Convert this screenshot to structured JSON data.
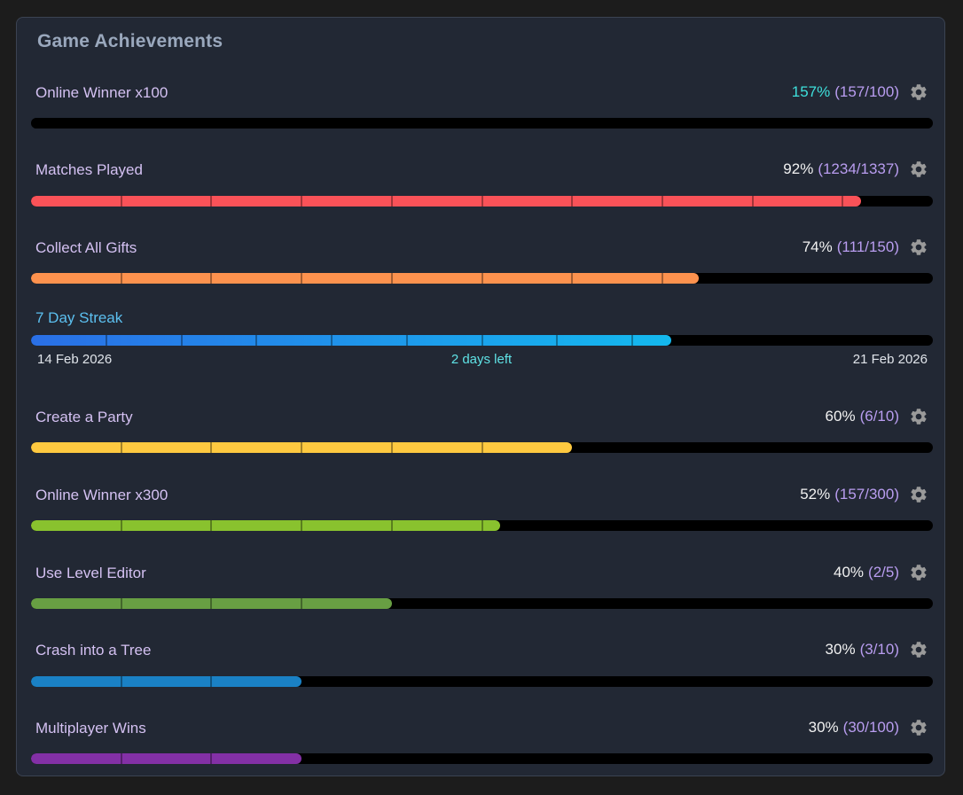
{
  "panel": {
    "title": "Game Achievements"
  },
  "achievements": [
    {
      "name": "Online Winner x100",
      "percent": "157%",
      "progress": "(157/100)",
      "fraction": 1.57,
      "segments": 1,
      "color": "#000000",
      "overflow": true
    },
    {
      "name": "Matches Played",
      "percent": "92%",
      "progress": "(1234/1337)",
      "fraction": 0.92,
      "segments": 10,
      "color": "#fa5258"
    },
    {
      "name": "Collect All Gifts",
      "percent": "74%",
      "progress": "(111/150)",
      "fraction": 0.74,
      "segments": 10,
      "color": "#fd924e"
    },
    {
      "name": "Create a Party",
      "percent": "60%",
      "progress": "(6/10)",
      "fraction": 0.6,
      "segments": 10,
      "color": "#fec940"
    },
    {
      "name": "Online Winner x300",
      "percent": "52%",
      "progress": "(157/300)",
      "fraction": 0.52,
      "segments": 10,
      "color": "#89c22e"
    },
    {
      "name": "Use Level Editor",
      "percent": "40%",
      "progress": "(2/5)",
      "fraction": 0.4,
      "segments": 10,
      "color": "#689f43"
    },
    {
      "name": "Crash into a Tree",
      "percent": "30%",
      "progress": "(3/10)",
      "fraction": 0.3,
      "segments": 10,
      "color": "#1a81c5"
    },
    {
      "name": "Multiplayer Wins",
      "percent": "30%",
      "progress": "(30/100)",
      "fraction": 0.3,
      "segments": 10,
      "color": "#8330a6"
    }
  ],
  "streak": {
    "name": "7 Day Streak",
    "start_date": "14 Feb 2026",
    "end_date": "21 Feb 2026",
    "remaining": "2 days left",
    "fraction": 0.71,
    "segments": 12,
    "color_start": "#2a6fe6",
    "color_end": "#14b9ee"
  },
  "icons": {
    "settings": "gear-icon"
  }
}
